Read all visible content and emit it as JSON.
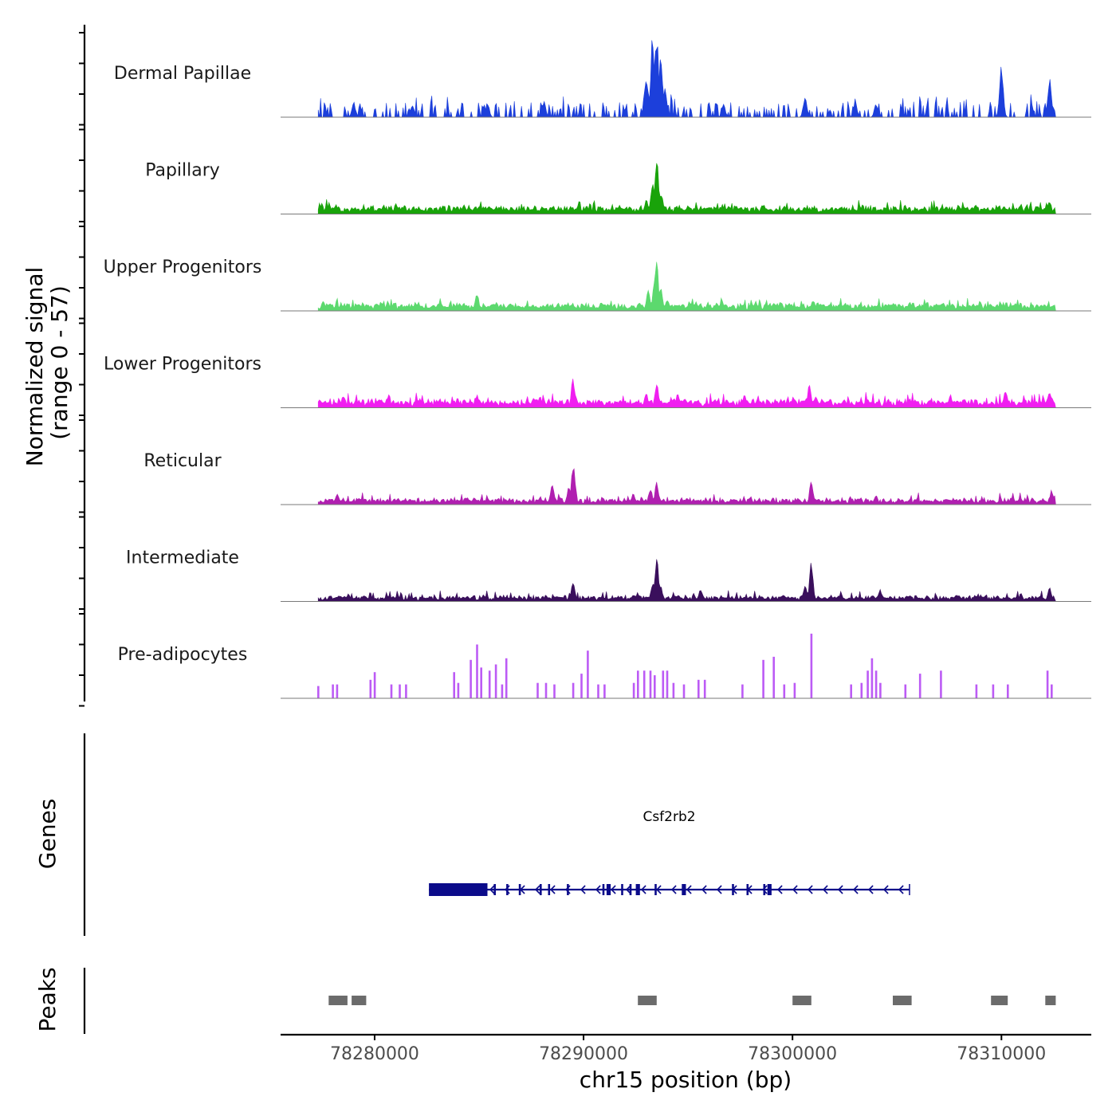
{
  "chart_data": {
    "type": "area",
    "title": "",
    "ylabel_line1": "Normalized signal",
    "ylabel_line2": "(range 0 - 57)",
    "genes_label": "Genes",
    "peaks_label": "Peaks",
    "xlabel": "chr15 position (bp)",
    "xlim": [
      78275500,
      78314300
    ],
    "ylim": [
      0,
      57
    ],
    "x_ticks": [
      78280000,
      78290000,
      78300000,
      78310000
    ],
    "x_tick_labels": [
      "78280000",
      "78290000",
      "78300000",
      "78310000"
    ],
    "signal_start": 78277300,
    "signal_end": 78312600,
    "tracks": [
      {
        "name": "Dermal Papillae",
        "color": "#1c3fdb",
        "style": "sparse",
        "base": 3,
        "noise": 12,
        "seed": 11,
        "peaks": [
          [
            78279000,
            10
          ],
          [
            78281800,
            9
          ],
          [
            78285400,
            10
          ],
          [
            78288100,
            10
          ],
          [
            78293000,
            30
          ],
          [
            78293300,
            54
          ],
          [
            78293500,
            57
          ],
          [
            78293700,
            42
          ],
          [
            78293900,
            22
          ],
          [
            78296700,
            9
          ],
          [
            78300600,
            14
          ],
          [
            78303000,
            10
          ],
          [
            78304000,
            9
          ],
          [
            78310000,
            37
          ],
          [
            78312300,
            27
          ]
        ]
      },
      {
        "name": "Papillary",
        "color": "#19a30a",
        "style": "dense",
        "base": 3,
        "noise": 6,
        "seed": 23,
        "peaks": [
          [
            78277400,
            4
          ],
          [
            78278000,
            5
          ],
          [
            78293000,
            10
          ],
          [
            78293300,
            20
          ],
          [
            78293500,
            43
          ],
          [
            78293700,
            16
          ],
          [
            78296700,
            5
          ],
          [
            78312300,
            9
          ]
        ]
      },
      {
        "name": "Upper Progenitors",
        "color": "#5cd96e",
        "style": "dense",
        "base": 3,
        "noise": 5,
        "seed": 37,
        "peaks": [
          [
            78284900,
            12
          ],
          [
            78293100,
            14
          ],
          [
            78293400,
            20
          ],
          [
            78293500,
            34
          ],
          [
            78293700,
            15
          ],
          [
            78294000,
            8
          ],
          [
            78301000,
            7
          ],
          [
            78305600,
            6
          ]
        ]
      },
      {
        "name": "Lower Progenitors",
        "color": "#f01ef0",
        "style": "dense",
        "base": 3,
        "noise": 7,
        "seed": 41,
        "peaks": [
          [
            78278500,
            8
          ],
          [
            78284900,
            9
          ],
          [
            78287900,
            8
          ],
          [
            78289500,
            20
          ],
          [
            78293000,
            10
          ],
          [
            78293500,
            16
          ],
          [
            78294500,
            9
          ],
          [
            78297700,
            9
          ],
          [
            78300800,
            15
          ],
          [
            78301100,
            8
          ],
          [
            78310200,
            12
          ],
          [
            78312300,
            11
          ]
        ]
      },
      {
        "name": "Reticular",
        "color": "#b01fb0",
        "style": "dense",
        "base": 2,
        "noise": 6,
        "seed": 53,
        "peaks": [
          [
            78278200,
            8
          ],
          [
            78288500,
            15
          ],
          [
            78289500,
            28
          ],
          [
            78289300,
            12
          ],
          [
            78293200,
            12
          ],
          [
            78293500,
            15
          ],
          [
            78300900,
            16
          ],
          [
            78304000,
            7
          ],
          [
            78312400,
            10
          ]
        ]
      },
      {
        "name": "Intermediate",
        "color": "#3a0f5c",
        "style": "dense",
        "base": 2,
        "noise": 5,
        "seed": 67,
        "peaks": [
          [
            78289500,
            14
          ],
          [
            78293300,
            12
          ],
          [
            78293500,
            32
          ],
          [
            78293700,
            10
          ],
          [
            78295600,
            8
          ],
          [
            78300600,
            12
          ],
          [
            78300900,
            26
          ],
          [
            78304200,
            8
          ],
          [
            78312300,
            10
          ]
        ]
      },
      {
        "name": "Pre-adipocytes",
        "color": "#bc5bf5",
        "style": "bars",
        "base": 0,
        "noise": 0,
        "seed": 79,
        "peaks": [
          [
            78277300,
            8
          ],
          [
            78278000,
            9
          ],
          [
            78278200,
            9
          ],
          [
            78279800,
            12
          ],
          [
            78280000,
            17
          ],
          [
            78280800,
            9
          ],
          [
            78281200,
            9
          ],
          [
            78281500,
            9
          ],
          [
            78283800,
            17
          ],
          [
            78284000,
            10
          ],
          [
            78284600,
            25
          ],
          [
            78284900,
            35
          ],
          [
            78285100,
            20
          ],
          [
            78285500,
            18
          ],
          [
            78285800,
            22
          ],
          [
            78286300,
            26
          ],
          [
            78286100,
            9
          ],
          [
            78287800,
            10
          ],
          [
            78288200,
            10
          ],
          [
            78288600,
            9
          ],
          [
            78289500,
            10
          ],
          [
            78289900,
            16
          ],
          [
            78290200,
            31
          ],
          [
            78290700,
            9
          ],
          [
            78291000,
            9
          ],
          [
            78292400,
            10
          ],
          [
            78292600,
            18
          ],
          [
            78292900,
            18
          ],
          [
            78293200,
            18
          ],
          [
            78293400,
            15
          ],
          [
            78293800,
            18
          ],
          [
            78294000,
            18
          ],
          [
            78294300,
            10
          ],
          [
            78294800,
            9
          ],
          [
            78295500,
            12
          ],
          [
            78295800,
            12
          ],
          [
            78297600,
            9
          ],
          [
            78298600,
            25
          ],
          [
            78299100,
            27
          ],
          [
            78299600,
            9
          ],
          [
            78300100,
            10
          ],
          [
            78300900,
            42
          ],
          [
            78302800,
            9
          ],
          [
            78303300,
            10
          ],
          [
            78303600,
            18
          ],
          [
            78303800,
            26
          ],
          [
            78304000,
            18
          ],
          [
            78304200,
            10
          ],
          [
            78305400,
            9
          ],
          [
            78306100,
            16
          ],
          [
            78307100,
            18
          ],
          [
            78308800,
            9
          ],
          [
            78309600,
            9
          ],
          [
            78310300,
            9
          ],
          [
            78312200,
            18
          ],
          [
            78312400,
            9
          ]
        ]
      }
    ],
    "genes": [
      {
        "name": "Csf2rb2",
        "strand": "-",
        "start": 78282600,
        "end": 78305600,
        "exons": [
          [
            78282600,
            78285400
          ],
          [
            78285700,
            78285800
          ],
          [
            78286300,
            78286400
          ],
          [
            78286900,
            78287000
          ],
          [
            78287900,
            78288000
          ],
          [
            78288300,
            78288400
          ],
          [
            78289200,
            78289300
          ],
          [
            78290900,
            78291000
          ],
          [
            78291100,
            78291300
          ],
          [
            78291800,
            78291900
          ],
          [
            78292200,
            78292300
          ],
          [
            78292500,
            78292700
          ],
          [
            78293400,
            78293500
          ],
          [
            78294700,
            78294900
          ],
          [
            78297100,
            78297200
          ],
          [
            78297800,
            78297900
          ],
          [
            78298600,
            78298700
          ],
          [
            78298800,
            78299000
          ]
        ]
      }
    ],
    "peak_regions": [
      [
        78277800,
        78278700
      ],
      [
        78278900,
        78279600
      ],
      [
        78292600,
        78293500
      ],
      [
        78300000,
        78300900
      ],
      [
        78304800,
        78305700
      ],
      [
        78309500,
        78310300
      ],
      [
        78312100,
        78312600
      ]
    ]
  }
}
